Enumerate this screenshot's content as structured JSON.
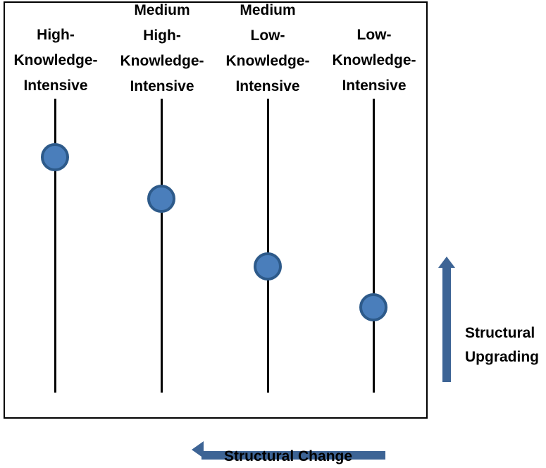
{
  "columns": [
    {
      "id": "high",
      "label_lines": [
        "High-",
        "Knowledge-",
        "Intensive"
      ],
      "level": 0.8
    },
    {
      "id": "medium-high",
      "label_lines": [
        "Medium",
        "High-",
        "Knowledge-",
        "Intensive"
      ],
      "level": 0.66
    },
    {
      "id": "medium-low",
      "label_lines": [
        "Medium",
        "Low-",
        "Knowledge-",
        "Intensive"
      ],
      "level": 0.43
    },
    {
      "id": "low",
      "label_lines": [
        "Low-",
        "Knowledge-",
        "Intensive"
      ],
      "level": 0.29
    }
  ],
  "vertical_arrow": {
    "label_lines": [
      "Structural",
      "Upgrading"
    ]
  },
  "horizontal_arrow": {
    "label": "Structural Change"
  },
  "colors": {
    "dot_fill": "#4a7ebb",
    "dot_border": "#2d5a8a",
    "arrow": "#3d6495"
  }
}
